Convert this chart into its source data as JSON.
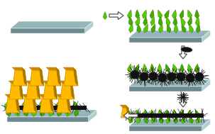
{
  "bg_color": "#ffffff",
  "plate_top_color": "#96b5ba",
  "plate_front_color": "#6a8a8f",
  "plate_right_color": "#b0cdd2",
  "green1": "#55cc00",
  "green2": "#44aa00",
  "black": "#111111",
  "gray_halo": "#999999",
  "gold": "#ffbb00",
  "gold_dark": "#cc8800",
  "gold_shadow": "#aa7700",
  "arrow_edge": "#555555",
  "seed_green": "#44cc00"
}
